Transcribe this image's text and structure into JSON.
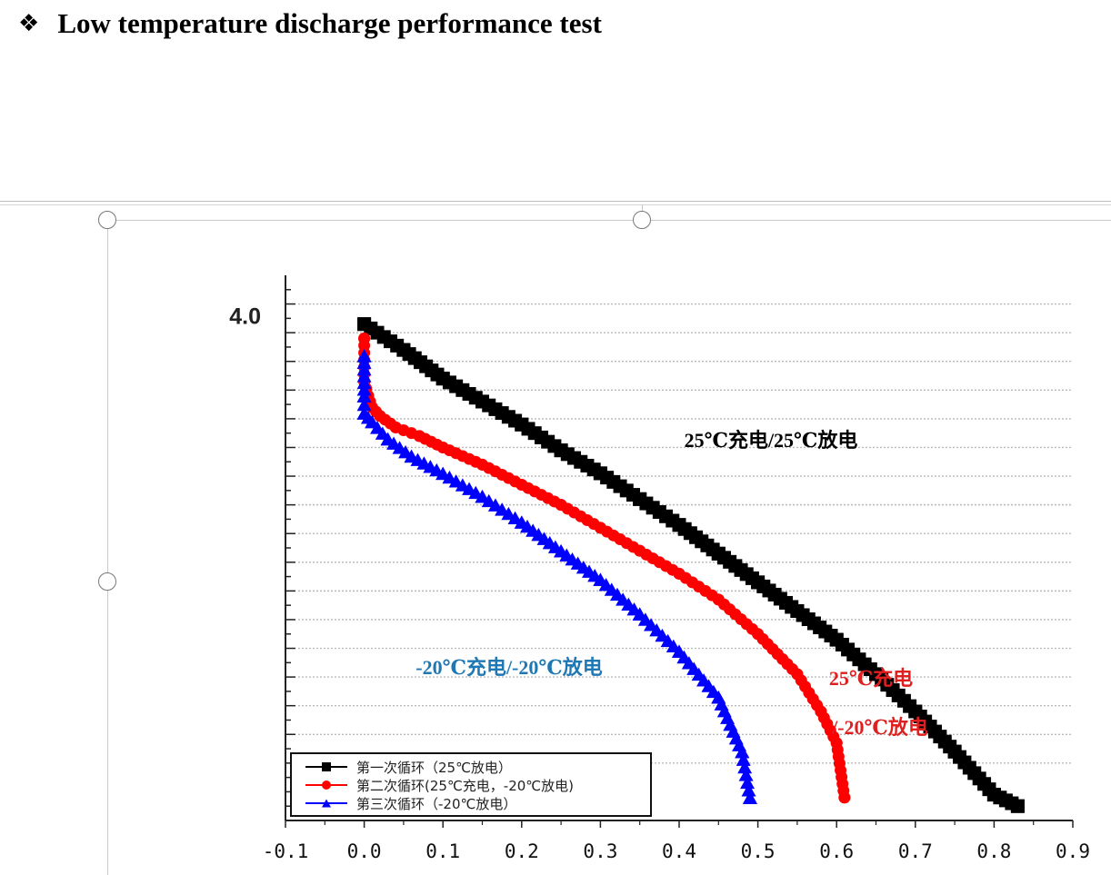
{
  "heading": {
    "bullet": "❖",
    "text": "Low temperature discharge performance test"
  },
  "chart_data": {
    "type": "scatter",
    "title": "",
    "xlabel": "",
    "ylabel": "",
    "xlim": [
      -0.1,
      0.9
    ],
    "ylim": [
      2.2,
      4.1
    ],
    "grid": "horizontal dotted",
    "legend_position": "bottom-left",
    "x_ticks": [
      "-0.1",
      "0.0",
      "0.1",
      "0.2",
      "0.3",
      "0.4",
      "0.5",
      "0.6",
      "0.7",
      "0.8",
      "0.9"
    ],
    "y_tick_labels": [
      {
        "y": 4.0,
        "label": "4.0"
      }
    ],
    "series": [
      {
        "name": "第一次循环（25℃放电）",
        "color": "#000000",
        "marker": "square",
        "points": [
          [
            0.0,
            3.93
          ],
          [
            0.05,
            3.84
          ],
          [
            0.1,
            3.74
          ],
          [
            0.15,
            3.66
          ],
          [
            0.2,
            3.58
          ],
          [
            0.25,
            3.49
          ],
          [
            0.3,
            3.41
          ],
          [
            0.35,
            3.32
          ],
          [
            0.4,
            3.23
          ],
          [
            0.45,
            3.13
          ],
          [
            0.5,
            3.03
          ],
          [
            0.55,
            2.93
          ],
          [
            0.6,
            2.83
          ],
          [
            0.65,
            2.71
          ],
          [
            0.7,
            2.58
          ],
          [
            0.75,
            2.44
          ],
          [
            0.8,
            2.29
          ],
          [
            0.83,
            2.25
          ]
        ]
      },
      {
        "name": "第二次循环(25℃充电，-20℃放电)",
        "color": "#ff0000",
        "marker": "circle",
        "points": [
          [
            0.0,
            3.88
          ],
          [
            0.0,
            3.73
          ],
          [
            0.005,
            3.68
          ],
          [
            0.01,
            3.64
          ],
          [
            0.02,
            3.61
          ],
          [
            0.04,
            3.57
          ],
          [
            0.07,
            3.54
          ],
          [
            0.1,
            3.5
          ],
          [
            0.15,
            3.44
          ],
          [
            0.2,
            3.37
          ],
          [
            0.25,
            3.3
          ],
          [
            0.3,
            3.22
          ],
          [
            0.35,
            3.14
          ],
          [
            0.4,
            3.06
          ],
          [
            0.45,
            2.97
          ],
          [
            0.5,
            2.85
          ],
          [
            0.55,
            2.71
          ],
          [
            0.58,
            2.58
          ],
          [
            0.6,
            2.47
          ],
          [
            0.61,
            2.28
          ]
        ]
      },
      {
        "name": "第三次循环（-20℃放电）",
        "color": "#0000ff",
        "marker": "triangle",
        "points": [
          [
            0.0,
            3.82
          ],
          [
            0.0,
            3.68
          ],
          [
            0.0,
            3.62
          ],
          [
            0.01,
            3.59
          ],
          [
            0.03,
            3.53
          ],
          [
            0.06,
            3.47
          ],
          [
            0.1,
            3.41
          ],
          [
            0.15,
            3.33
          ],
          [
            0.2,
            3.24
          ],
          [
            0.25,
            3.14
          ],
          [
            0.3,
            3.04
          ],
          [
            0.35,
            2.92
          ],
          [
            0.4,
            2.79
          ],
          [
            0.45,
            2.63
          ],
          [
            0.48,
            2.44
          ],
          [
            0.49,
            2.28
          ]
        ]
      }
    ],
    "annotations": [
      {
        "id": "black",
        "text": "25℃充电/25℃放电",
        "color": "#000000"
      },
      {
        "id": "red1",
        "text": "25℃充电",
        "color": "#e02020"
      },
      {
        "id": "red2",
        "text": "/-20℃放电",
        "color": "#e02020"
      },
      {
        "id": "blue",
        "text": "-20℃充电/-20℃放电",
        "color": "#1f78b4"
      }
    ]
  }
}
